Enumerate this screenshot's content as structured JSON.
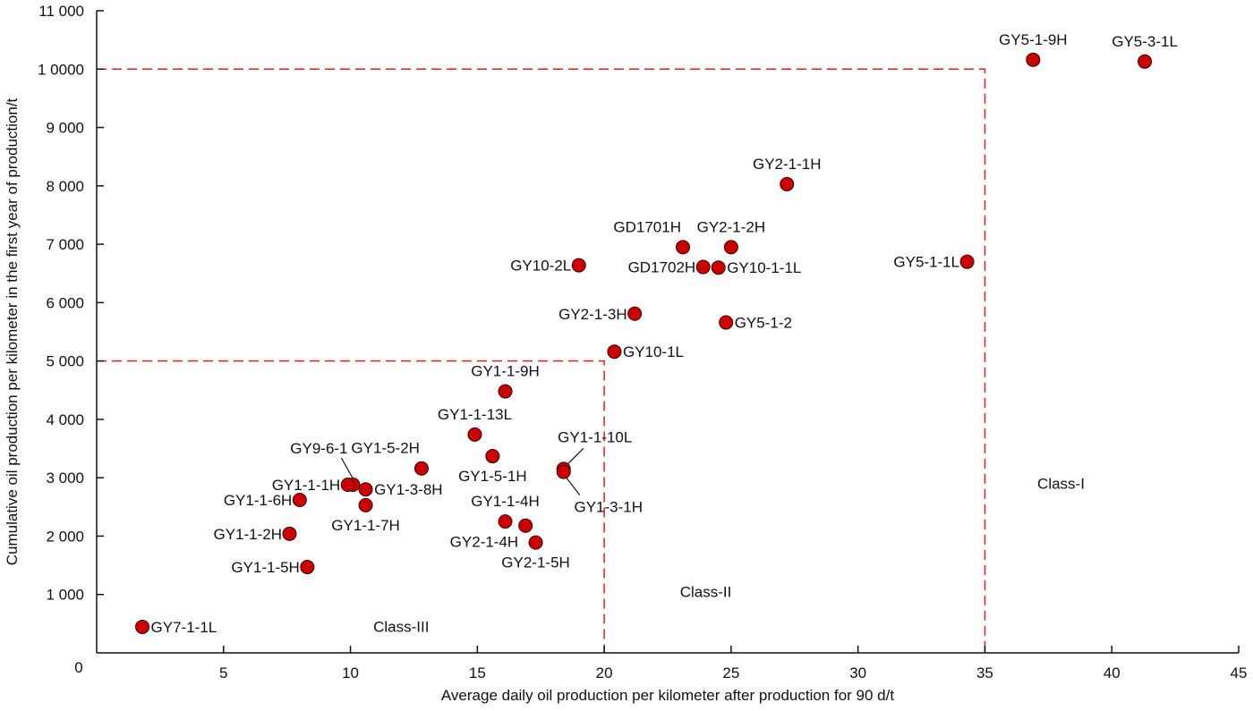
{
  "chart_data": {
    "type": "scatter",
    "title": "",
    "xlabel": "Average daily oil production per kilometer after production for 90 d/t",
    "ylabel": "Cumulative oil production per kilometer in the first year of production/t",
    "xlim": [
      0,
      45
    ],
    "ylim": [
      0,
      11000
    ],
    "x_ticks": [
      5,
      10,
      15,
      20,
      25,
      30,
      35,
      40,
      45
    ],
    "x_tick_labels": [
      "5",
      "10",
      "15",
      "20",
      "25",
      "30",
      "35",
      "40",
      "45"
    ],
    "y_ticks": [
      0,
      1000,
      2000,
      3000,
      4000,
      5000,
      6000,
      7000,
      8000,
      9000,
      10000,
      11000
    ],
    "y_tick_labels": [
      "0",
      "1 000",
      "2 000",
      "3 000",
      "4 000",
      "5 000",
      "6 000",
      "7 000",
      "8 000",
      "9 000",
      "1 0000",
      "11 000"
    ],
    "grid": false,
    "marker_color": "#cc0000",
    "threshold_color": "#dd2222",
    "thresholds": [
      {
        "name": "class-ii-boundary",
        "x": 20,
        "y": 5000
      },
      {
        "name": "class-i-boundary",
        "x": 35,
        "y": 10000
      }
    ],
    "region_labels": [
      {
        "text": "Class-III",
        "x": 12,
        "y": 450
      },
      {
        "text": "Class-II",
        "x": 24,
        "y": 1050
      },
      {
        "text": "Class-I",
        "x": 38,
        "y": 2900
      }
    ],
    "points": [
      {
        "label": "GY5-1-9H",
        "x": 36.9,
        "y": 10160,
        "pos": "above"
      },
      {
        "label": "GY5-3-1L",
        "x": 41.3,
        "y": 10130,
        "pos": "above"
      },
      {
        "label": "GY2-1-1H",
        "x": 27.2,
        "y": 8030,
        "pos": "above"
      },
      {
        "label": "GD1701H",
        "x": 23.1,
        "y": 6950,
        "pos": "above-left"
      },
      {
        "label": "GY2-1-2H",
        "x": 25.0,
        "y": 6950,
        "pos": "above"
      },
      {
        "label": "GY10-2L",
        "x": 19.0,
        "y": 6640,
        "pos": "left"
      },
      {
        "label": "GD1702H",
        "x": 23.9,
        "y": 6610,
        "pos": "left"
      },
      {
        "label": "GY10-1-1L",
        "x": 24.5,
        "y": 6600,
        "pos": "right"
      },
      {
        "label": "GY5-1-1L",
        "x": 34.3,
        "y": 6700,
        "pos": "left"
      },
      {
        "label": "GY2-1-3H",
        "x": 21.2,
        "y": 5810,
        "pos": "left"
      },
      {
        "label": "GY5-1-2",
        "x": 24.8,
        "y": 5660,
        "pos": "right"
      },
      {
        "label": "GY10-1L",
        "x": 20.4,
        "y": 5160,
        "pos": "right"
      },
      {
        "label": "GY1-1-9H",
        "x": 16.1,
        "y": 4480,
        "pos": "above"
      },
      {
        "label": "GY1-1-13L",
        "x": 14.9,
        "y": 3740,
        "pos": "above"
      },
      {
        "label": "GY1-5-2H",
        "x": 12.8,
        "y": 3160,
        "pos": "above-left"
      },
      {
        "label": "GY1-5-1H",
        "x": 15.6,
        "y": 3370,
        "pos": "below"
      },
      {
        "label": "GY1-1-10L",
        "x": 18.4,
        "y": 3150,
        "pos": "leader-up"
      },
      {
        "label": "GY1-3-1H",
        "x": 18.4,
        "y": 3100,
        "pos": "leader-down"
      },
      {
        "label": "GY9-6-1",
        "x": 10.1,
        "y": 2880,
        "pos": "leader-up-left"
      },
      {
        "label": "GY1-1-1H",
        "x": 9.9,
        "y": 2880,
        "pos": "left"
      },
      {
        "label": "GY1-3-8H",
        "x": 10.6,
        "y": 2800,
        "pos": "right"
      },
      {
        "label": "GY1-1-6H",
        "x": 8.0,
        "y": 2620,
        "pos": "left"
      },
      {
        "label": "GY1-1-7H",
        "x": 10.6,
        "y": 2530,
        "pos": "below"
      },
      {
        "label": "GY1-1-2H",
        "x": 7.6,
        "y": 2040,
        "pos": "left"
      },
      {
        "label": "GY1-1-4H",
        "x": 16.1,
        "y": 2250,
        "pos": "above"
      },
      {
        "label": "GY2-1-4H",
        "x": 16.9,
        "y": 2180,
        "pos": "below-left"
      },
      {
        "label": "GY2-1-5H",
        "x": 17.3,
        "y": 1890,
        "pos": "below"
      },
      {
        "label": "GY1-1-5H",
        "x": 8.3,
        "y": 1470,
        "pos": "left"
      },
      {
        "label": "GY7-1-1L",
        "x": 1.8,
        "y": 445,
        "pos": "right"
      }
    ]
  }
}
